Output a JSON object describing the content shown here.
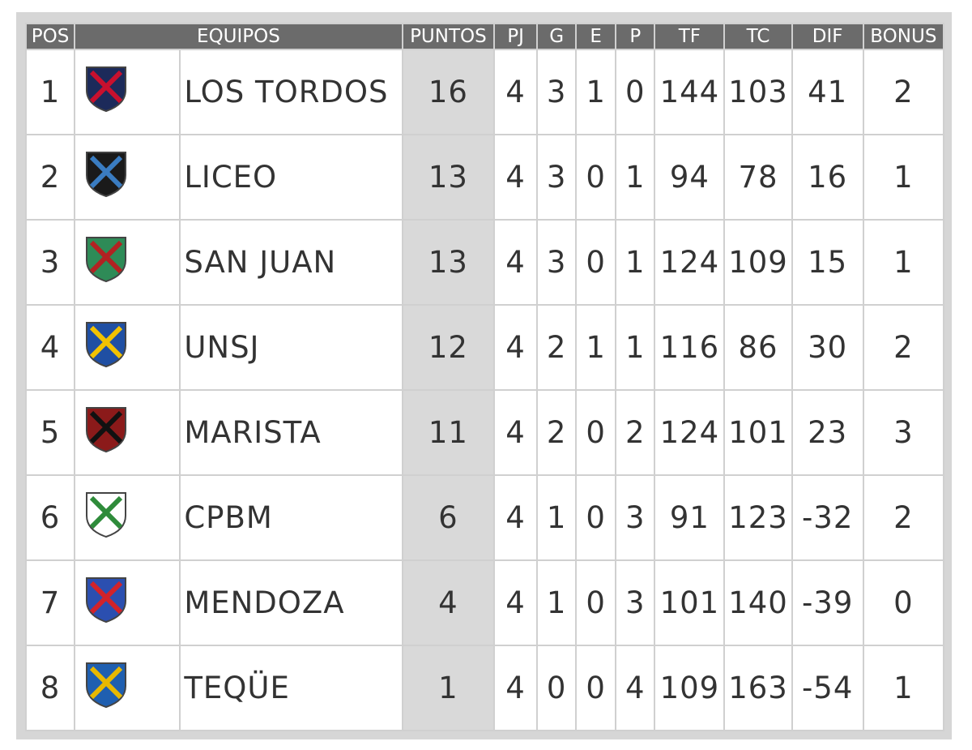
{
  "table": {
    "headers": [
      "POS",
      "EQUIPOS",
      "PUNTOS",
      "PJ",
      "G",
      "E",
      "P",
      "TF",
      "TC",
      "DIF",
      "BONUS"
    ],
    "rows": [
      [
        1,
        "LOS TORDOS",
        16,
        4,
        3,
        1,
        0,
        144,
        103,
        41,
        2
      ],
      [
        2,
        "LICEO",
        13,
        4,
        3,
        0,
        1,
        94,
        78,
        16,
        1
      ],
      [
        3,
        "SAN JUAN",
        13,
        4,
        3,
        0,
        1,
        124,
        109,
        15,
        1
      ],
      [
        4,
        "UNSJ",
        12,
        4,
        2,
        1,
        1,
        116,
        86,
        30,
        2
      ],
      [
        5,
        "MARISTA",
        11,
        4,
        2,
        0,
        2,
        124,
        101,
        23,
        3
      ],
      [
        6,
        "CPBM",
        6,
        4,
        1,
        0,
        3,
        91,
        123,
        -32,
        2
      ],
      [
        7,
        "MENDOZA",
        4,
        4,
        1,
        0,
        3,
        101,
        140,
        -39,
        0
      ],
      [
        8,
        "TEQÜE",
        1,
        4,
        0,
        0,
        4,
        109,
        163,
        -54,
        1
      ]
    ]
  }
}
